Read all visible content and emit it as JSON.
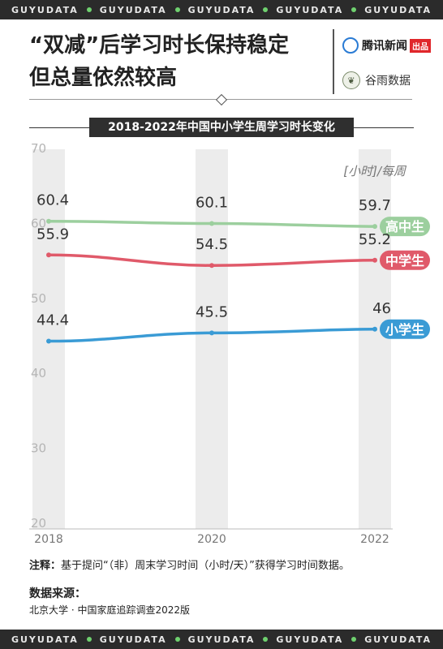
{
  "brand_band": {
    "text": "GUYUDATA",
    "repeat": 5,
    "dot_color": "#6fd16f"
  },
  "header": {
    "headline_line1": "“双减”后学习时长保持稳定",
    "headline_line2": "但总量依然较高",
    "brand_tencent": "腾讯新闻",
    "brand_tencent_tag": "出品",
    "brand_guyu": "谷雨数据"
  },
  "chart_data": {
    "type": "line",
    "title": "2018-2022年中国中小学生周学习时长变化",
    "unit": "[小时]/每周",
    "x": [
      "2018",
      "2020",
      "2022"
    ],
    "ylim": [
      20,
      70
    ],
    "yticks": [
      20,
      30,
      40,
      50,
      60,
      70
    ],
    "grid": false,
    "series": [
      {
        "name": "高中生",
        "values": [
          60.4,
          60.1,
          59.7
        ],
        "labels": [
          "60.4",
          "60.1",
          "59.7"
        ],
        "color": "#9ccf9e"
      },
      {
        "name": "中学生",
        "values": [
          55.9,
          54.5,
          55.2
        ],
        "labels": [
          "55.9",
          "54.5",
          "55.2"
        ],
        "color": "#e05a6a"
      },
      {
        "name": "小学生",
        "values": [
          44.4,
          45.5,
          46.0
        ],
        "labels": [
          "44.4",
          "45.5",
          "46"
        ],
        "color": "#3a9bd5"
      }
    ]
  },
  "footer": {
    "note_label": "注释：",
    "note_text": "基于提问“（非）周末学习时间（小时/天）”获得学习时间数据。",
    "source_label": "数据来源：",
    "source_text": "北京大学 · 中国家庭追踪调查2022版"
  }
}
